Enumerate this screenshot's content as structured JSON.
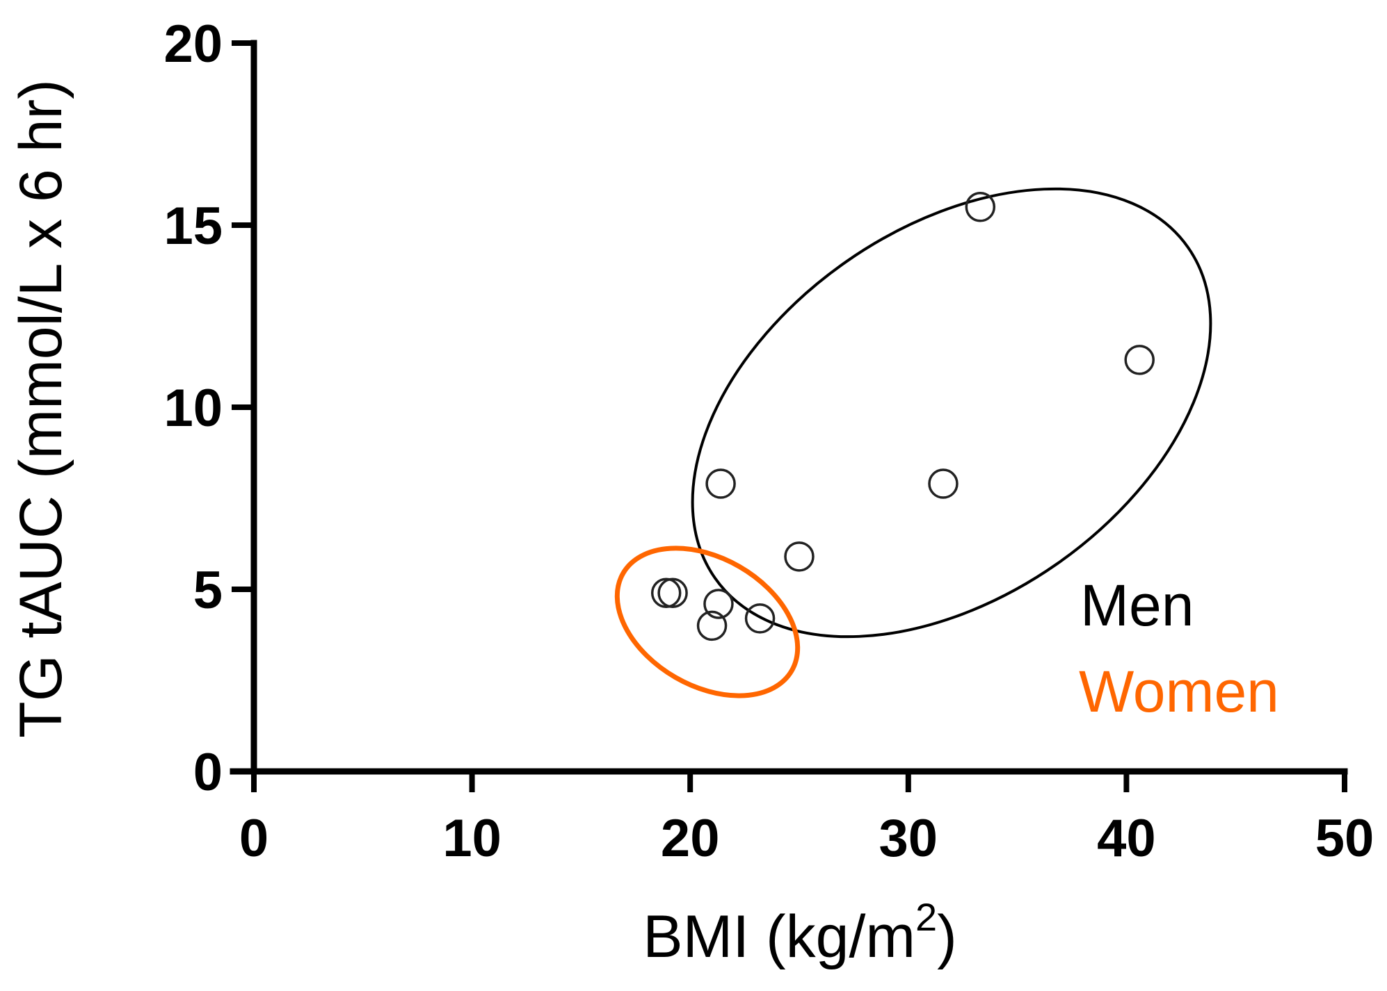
{
  "chart_data": {
    "type": "scatter",
    "title": "",
    "xlabel": "BMI (kg/m²)",
    "xlabel_main": "BMI (kg/m",
    "xlabel_sup": "2",
    "xlabel_end": ")",
    "ylabel": "TG tAUC (mmol/L x 6 hr)",
    "xlim": [
      0,
      50
    ],
    "ylim": [
      0,
      20
    ],
    "xticks": [
      0,
      10,
      20,
      30,
      40,
      50
    ],
    "yticks": [
      0,
      5,
      10,
      15,
      20
    ],
    "xtick_labels": [
      "0",
      "10",
      "20",
      "30",
      "40",
      "50"
    ],
    "ytick_labels": [
      "0",
      "5",
      "10",
      "15",
      "20"
    ],
    "grid": false,
    "legend_position": "lower-right, inside plot",
    "series": [
      {
        "name": "Men",
        "color": "#000000",
        "marker": "open-circle",
        "points": [
          {
            "x": 33.3,
            "y": 15.5
          },
          {
            "x": 40.6,
            "y": 11.3
          },
          {
            "x": 21.4,
            "y": 7.9
          },
          {
            "x": 31.6,
            "y": 7.9
          },
          {
            "x": 25.0,
            "y": 5.9
          }
        ],
        "enclosure": {
          "type": "ellipse",
          "color": "#000000"
        }
      },
      {
        "name": "Women",
        "color": "#FF6600",
        "marker": "open-circle",
        "points": [
          {
            "x": 18.9,
            "y": 4.9
          },
          {
            "x": 19.2,
            "y": 4.9
          },
          {
            "x": 21.3,
            "y": 4.6
          },
          {
            "x": 21.0,
            "y": 4.0
          },
          {
            "x": 23.2,
            "y": 4.2
          }
        ],
        "enclosure": {
          "type": "ellipse",
          "color": "#FF6600"
        }
      }
    ]
  },
  "legend": {
    "men_label": "Men",
    "women_label": "Women",
    "men_color": "#000000",
    "women_color": "#FF6600"
  }
}
